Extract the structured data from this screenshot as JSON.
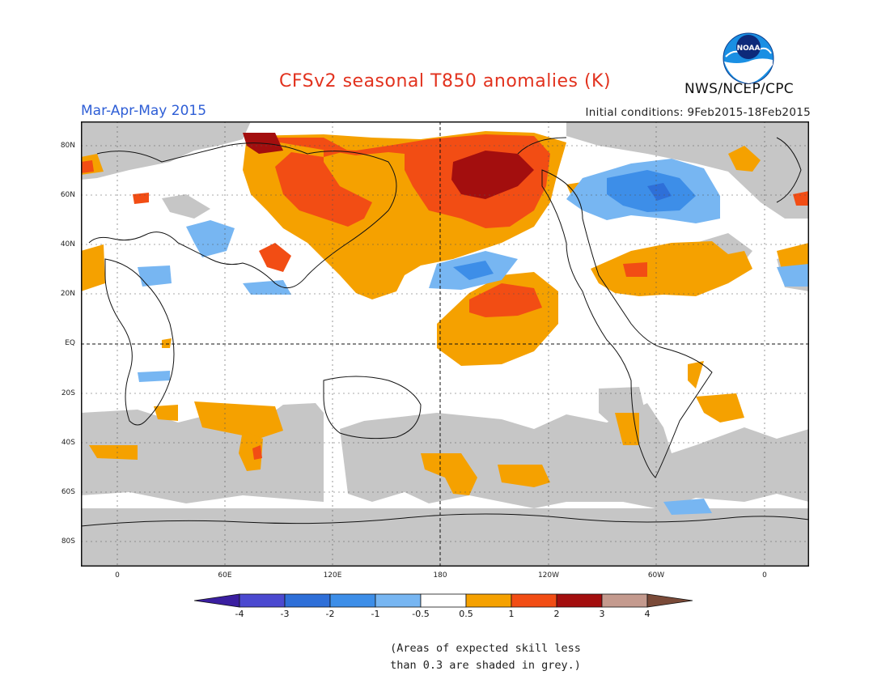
{
  "title": "CFSv2 seasonal T850 anomalies (K)",
  "season": "Mar-Apr-May 2015",
  "initial_conditions": "Initial conditions: 9Feb2015-18Feb2015",
  "organization": "NWS/NCEP/CPC",
  "logo_text": "NOAA",
  "lat_labels": [
    "80N",
    "60N",
    "40N",
    "20N",
    "EQ",
    "20S",
    "40S",
    "60S",
    "80S"
  ],
  "lon_labels": [
    "0",
    "60E",
    "120E",
    "180",
    "120W",
    "60W",
    "0"
  ],
  "colorbar": {
    "labels": [
      "-4",
      "-3",
      "-2",
      "-1",
      "-0.5",
      "0.5",
      "1",
      "2",
      "3",
      "4"
    ],
    "colors": [
      "#3a1ea0",
      "#4b49d0",
      "#2e6fd8",
      "#3d8ee8",
      "#77b6f2",
      "#ffffff",
      "#f5a100",
      "#f24d14",
      "#a30e0e",
      "#c49a8e",
      "#7a4a38"
    ]
  },
  "colors": {
    "grey_skill": "#c6c6c6",
    "title": "#e2321e",
    "season": "#2e5ed6"
  },
  "footnote": {
    "line1": "(Areas of expected skill less",
    "line2": "than 0.3 are shaded in grey.)"
  }
}
